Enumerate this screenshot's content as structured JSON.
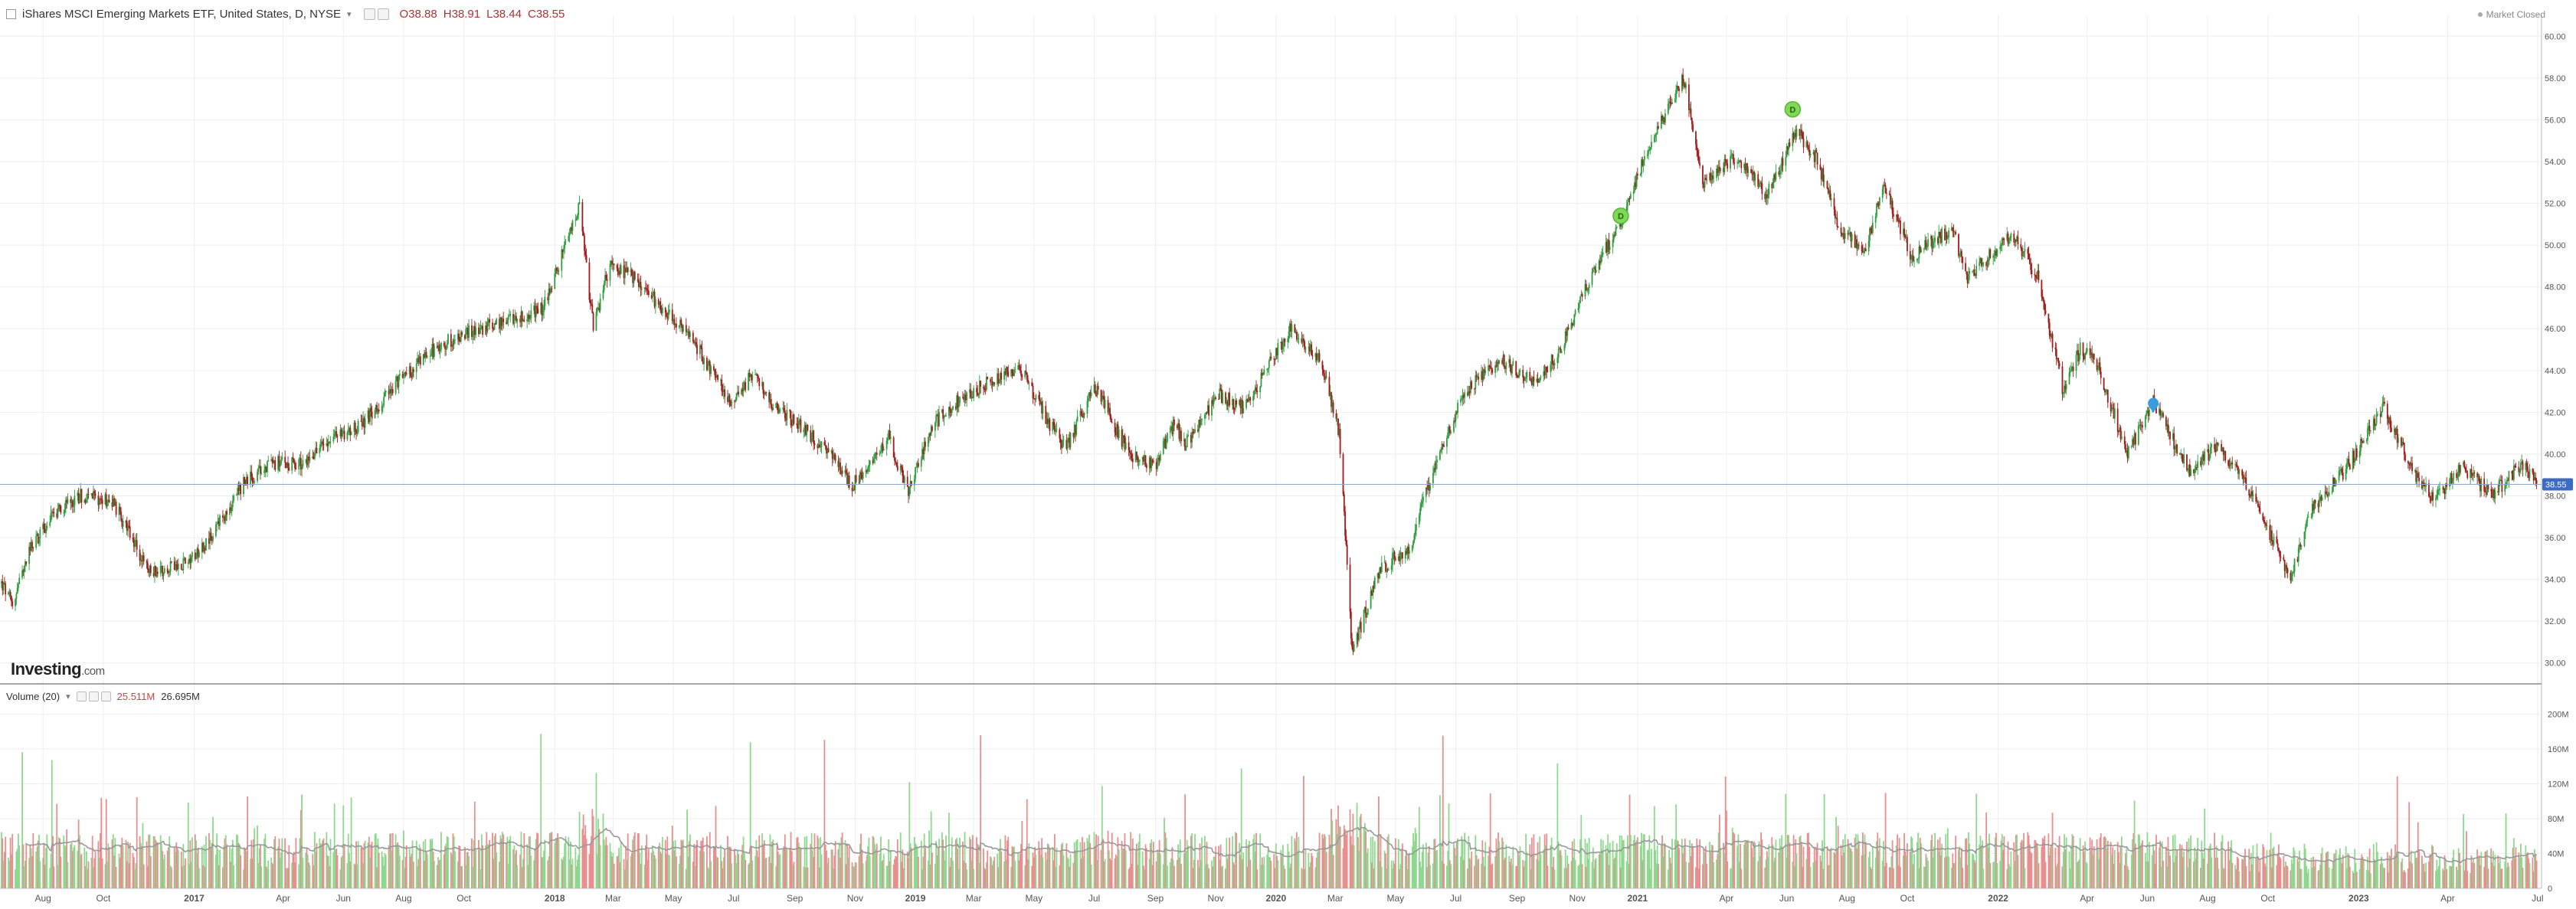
{
  "legend": {
    "symbol": "iShares MSCI Emerging Markets ETF, United States, D, NYSE",
    "open": "O38.88",
    "high": "H38.91",
    "low": "L38.44",
    "close": "C38.55"
  },
  "market_status": "Market Closed",
  "logo": {
    "main": "Investing",
    "suffix": ".com"
  },
  "volume_legend": {
    "label": "Volume (20)",
    "vol": "25.511M",
    "ma": "26.695M"
  },
  "last_price_label": "38.55",
  "colors": {
    "up": "#2e9e3f",
    "down": "#a01c1c",
    "vol_up": "#8fd88f",
    "vol_down": "#e88f8f",
    "grid": "#eeeeee",
    "last_line": "#8fa9c8",
    "last_tag": "#3b6bc4",
    "marker_green": "#7ed957",
    "marker_blue": "#3b9be0"
  },
  "chart_data": {
    "type": "candlestick",
    "price_axis": {
      "ylim": [
        29.0,
        61.0
      ],
      "ticks": [
        "60.00",
        "58.00",
        "56.00",
        "54.00",
        "52.00",
        "50.00",
        "48.00",
        "46.00",
        "44.00",
        "42.00",
        "40.00",
        "38.00",
        "36.00",
        "34.00",
        "32.00",
        "30.00"
      ]
    },
    "volume_axis": {
      "ylim": [
        0,
        220
      ],
      "ticks": [
        "200M",
        "160M",
        "120M",
        "80M",
        "40M",
        "0"
      ]
    },
    "time_axis": {
      "range": [
        "2016-06-20",
        "2023-07-05"
      ],
      "ticks": [
        {
          "date": "2016-08-01",
          "label": "Aug"
        },
        {
          "date": "2016-10-01",
          "label": "Oct"
        },
        {
          "date": "2017-01-01",
          "label": "2017"
        },
        {
          "date": "2017-04-01",
          "label": "Apr"
        },
        {
          "date": "2017-06-01",
          "label": "Jun"
        },
        {
          "date": "2017-08-01",
          "label": "Aug"
        },
        {
          "date": "2017-10-01",
          "label": "Oct"
        },
        {
          "date": "2018-01-01",
          "label": "2018"
        },
        {
          "date": "2018-03-01",
          "label": "Mar"
        },
        {
          "date": "2018-05-01",
          "label": "May"
        },
        {
          "date": "2018-07-01",
          "label": "Jul"
        },
        {
          "date": "2018-09-01",
          "label": "Sep"
        },
        {
          "date": "2018-11-01",
          "label": "Nov"
        },
        {
          "date": "2019-01-01",
          "label": "2019"
        },
        {
          "date": "2019-03-01",
          "label": "Mar"
        },
        {
          "date": "2019-05-01",
          "label": "May"
        },
        {
          "date": "2019-07-01",
          "label": "Jul"
        },
        {
          "date": "2019-09-01",
          "label": "Sep"
        },
        {
          "date": "2019-11-01",
          "label": "Nov"
        },
        {
          "date": "2020-01-01",
          "label": "2020"
        },
        {
          "date": "2020-03-01",
          "label": "Mar"
        },
        {
          "date": "2020-05-01",
          "label": "May"
        },
        {
          "date": "2020-07-01",
          "label": "Jul"
        },
        {
          "date": "2020-09-01",
          "label": "Sep"
        },
        {
          "date": "2020-11-01",
          "label": "Nov"
        },
        {
          "date": "2021-01-01",
          "label": "2021"
        },
        {
          "date": "2021-04-01",
          "label": "Apr"
        },
        {
          "date": "2021-06-01",
          "label": "Jun"
        },
        {
          "date": "2021-08-01",
          "label": "Aug"
        },
        {
          "date": "2021-10-01",
          "label": "Oct"
        },
        {
          "date": "2022-01-01",
          "label": "2022"
        },
        {
          "date": "2022-04-01",
          "label": "Apr"
        },
        {
          "date": "2022-06-01",
          "label": "Jun"
        },
        {
          "date": "2022-08-01",
          "label": "Aug"
        },
        {
          "date": "2022-10-01",
          "label": "Oct"
        },
        {
          "date": "2023-01-01",
          "label": "2023"
        },
        {
          "date": "2023-04-01",
          "label": "Apr"
        },
        {
          "date": "2023-07-01",
          "label": "Jul"
        }
      ]
    },
    "price_path": [
      {
        "date": "2016-06-20",
        "close": 33.8
      },
      {
        "date": "2016-07-01",
        "close": 32.8
      },
      {
        "date": "2016-07-20",
        "close": 35.5
      },
      {
        "date": "2016-08-15",
        "close": 37.3
      },
      {
        "date": "2016-09-07",
        "close": 38.0
      },
      {
        "date": "2016-10-10",
        "close": 37.8
      },
      {
        "date": "2016-11-15",
        "close": 34.4
      },
      {
        "date": "2016-12-15",
        "close": 34.6
      },
      {
        "date": "2017-01-15",
        "close": 35.8
      },
      {
        "date": "2017-02-20",
        "close": 38.6
      },
      {
        "date": "2017-03-20",
        "close": 39.6
      },
      {
        "date": "2017-04-20",
        "close": 39.5
      },
      {
        "date": "2017-05-15",
        "close": 40.7
      },
      {
        "date": "2017-06-20",
        "close": 41.4
      },
      {
        "date": "2017-07-25",
        "close": 43.4
      },
      {
        "date": "2017-09-05",
        "close": 45.2
      },
      {
        "date": "2017-10-15",
        "close": 46.0
      },
      {
        "date": "2017-11-15",
        "close": 46.4
      },
      {
        "date": "2017-12-20",
        "close": 47.0
      },
      {
        "date": "2018-01-26",
        "close": 51.8
      },
      {
        "date": "2018-02-09",
        "close": 46.0
      },
      {
        "date": "2018-02-25",
        "close": 49.0
      },
      {
        "date": "2018-03-20",
        "close": 48.5
      },
      {
        "date": "2018-04-20",
        "close": 47.0
      },
      {
        "date": "2018-05-20",
        "close": 45.5
      },
      {
        "date": "2018-06-28",
        "close": 42.5
      },
      {
        "date": "2018-07-20",
        "close": 43.8
      },
      {
        "date": "2018-08-15",
        "close": 42.0
      },
      {
        "date": "2018-09-05",
        "close": 41.5
      },
      {
        "date": "2018-10-05",
        "close": 40.0
      },
      {
        "date": "2018-10-29",
        "close": 38.5
      },
      {
        "date": "2018-12-05",
        "close": 40.8
      },
      {
        "date": "2018-12-24",
        "close": 38.2
      },
      {
        "date": "2019-01-20",
        "close": 41.5
      },
      {
        "date": "2019-02-20",
        "close": 42.8
      },
      {
        "date": "2019-04-17",
        "close": 44.2
      },
      {
        "date": "2019-05-15",
        "close": 41.5
      },
      {
        "date": "2019-06-03",
        "close": 40.3
      },
      {
        "date": "2019-07-01",
        "close": 43.3
      },
      {
        "date": "2019-08-05",
        "close": 40.0
      },
      {
        "date": "2019-09-01",
        "close": 39.5
      },
      {
        "date": "2019-09-20",
        "close": 41.5
      },
      {
        "date": "2019-10-01",
        "close": 40.5
      },
      {
        "date": "2019-11-05",
        "close": 42.8
      },
      {
        "date": "2019-12-01",
        "close": 42.2
      },
      {
        "date": "2020-01-15",
        "close": 46.0
      },
      {
        "date": "2020-02-15",
        "close": 44.5
      },
      {
        "date": "2020-03-05",
        "close": 41.0
      },
      {
        "date": "2020-03-18",
        "close": 30.5
      },
      {
        "date": "2020-04-15",
        "close": 34.5
      },
      {
        "date": "2020-05-15",
        "close": 35.5
      },
      {
        "date": "2020-06-10",
        "close": 39.5
      },
      {
        "date": "2020-07-10",
        "close": 43.0
      },
      {
        "date": "2020-08-15",
        "close": 44.5
      },
      {
        "date": "2020-09-20",
        "close": 43.5
      },
      {
        "date": "2020-10-15",
        "close": 45.0
      },
      {
        "date": "2020-11-10",
        "close": 48.0
      },
      {
        "date": "2020-12-15",
        "close": 51.2
      },
      {
        "date": "2021-01-10",
        "close": 54.5
      },
      {
        "date": "2021-02-17",
        "close": 58.0
      },
      {
        "date": "2021-03-08",
        "close": 53.0
      },
      {
        "date": "2021-04-10",
        "close": 54.2
      },
      {
        "date": "2021-05-12",
        "close": 52.4
      },
      {
        "date": "2021-06-10",
        "close": 55.5
      },
      {
        "date": "2021-07-01",
        "close": 54.2
      },
      {
        "date": "2021-07-25",
        "close": 50.8
      },
      {
        "date": "2021-08-19",
        "close": 49.7
      },
      {
        "date": "2021-09-07",
        "close": 52.8
      },
      {
        "date": "2021-10-05",
        "close": 49.5
      },
      {
        "date": "2021-11-15",
        "close": 50.8
      },
      {
        "date": "2021-12-01",
        "close": 48.5
      },
      {
        "date": "2022-01-15",
        "close": 50.5
      },
      {
        "date": "2022-02-10",
        "close": 48.5
      },
      {
        "date": "2022-03-08",
        "close": 43.0
      },
      {
        "date": "2022-03-25",
        "close": 45.0
      },
      {
        "date": "2022-04-10",
        "close": 44.5
      },
      {
        "date": "2022-05-12",
        "close": 40.0
      },
      {
        "date": "2022-06-07",
        "close": 42.5
      },
      {
        "date": "2022-07-15",
        "close": 39.0
      },
      {
        "date": "2022-08-10",
        "close": 40.5
      },
      {
        "date": "2022-09-10",
        "close": 38.5
      },
      {
        "date": "2022-10-24",
        "close": 34.0
      },
      {
        "date": "2022-11-15",
        "close": 37.5
      },
      {
        "date": "2022-12-15",
        "close": 39.0
      },
      {
        "date": "2023-01-26",
        "close": 42.2
      },
      {
        "date": "2023-03-01",
        "close": 38.8
      },
      {
        "date": "2023-03-20",
        "close": 37.8
      },
      {
        "date": "2023-04-15",
        "close": 39.5
      },
      {
        "date": "2023-05-15",
        "close": 38.0
      },
      {
        "date": "2023-06-15",
        "close": 39.5
      },
      {
        "date": "2023-06-30",
        "close": 38.55
      }
    ],
    "volume_average_M": 48,
    "markers": [
      {
        "date": "2020-12-15",
        "price": 51.4,
        "type": "dividend",
        "label": "D"
      },
      {
        "date": "2021-06-07",
        "price": 56.5,
        "type": "dividend",
        "label": "D"
      },
      {
        "date": "2022-06-07",
        "price": 42.3,
        "type": "event",
        "label": ""
      }
    ]
  }
}
